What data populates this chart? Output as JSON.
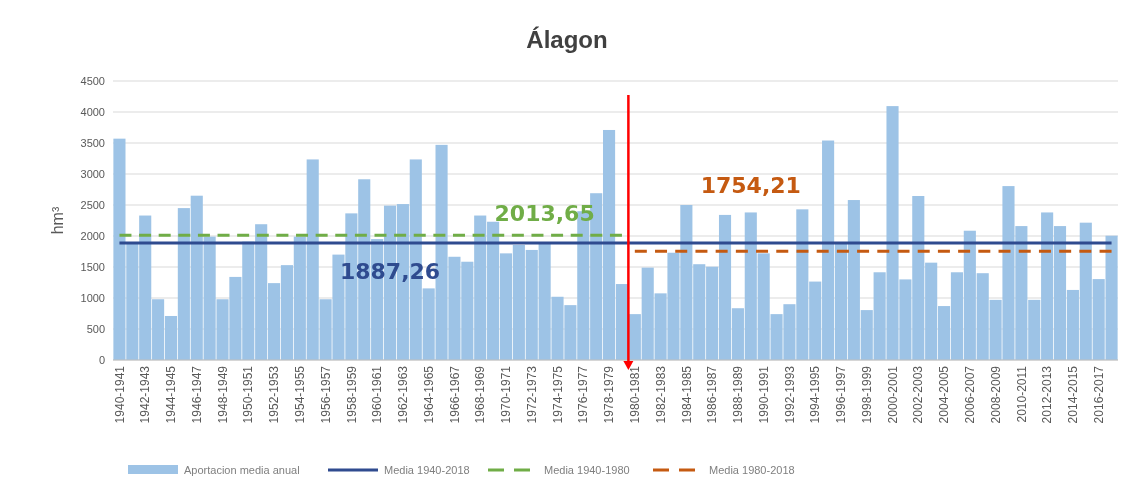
{
  "chart_data": {
    "type": "bar",
    "title": "Álagon",
    "ylabel": "hm³",
    "categories": [
      "1940-1941",
      null,
      "1942-1943",
      null,
      "1944-1945",
      null,
      "1946-1947",
      null,
      "1948-1949",
      null,
      "1950-1951",
      null,
      "1952-1953",
      null,
      "1954-1955",
      null,
      "1956-1957",
      null,
      "1958-1959",
      null,
      "1960-1961",
      null,
      "1962-1963",
      null,
      "1964-1965",
      null,
      "1966-1967",
      null,
      "1968-1969",
      null,
      "1970-1971",
      null,
      "1972-1973",
      null,
      "1974-1975",
      null,
      "1976-1977",
      null,
      "1978-1979",
      null,
      "1980-1981",
      null,
      "1982-1983",
      null,
      "1984-1985",
      null,
      "1986-1987",
      null,
      "1988-1989",
      null,
      "1990-1991",
      null,
      "1992-1993",
      null,
      "1994-1995",
      null,
      "1996-1997",
      null,
      "1998-1999",
      null,
      "2000-2001",
      null,
      "2002-2003",
      null,
      "2004-2005",
      null,
      "2006-2007",
      null,
      "2008-2009",
      null,
      "2010-2011",
      null,
      "2012-2013",
      null,
      "2014-2015",
      null,
      "2016-2017",
      null
    ],
    "series": [
      {
        "name": "Aportacion media anual",
        "color": "#9dc3e6",
        "values": [
          3570,
          1880,
          2330,
          980,
          710,
          2450,
          2650,
          1990,
          980,
          1340,
          1910,
          2190,
          1240,
          1530,
          1990,
          3235,
          980,
          1700,
          2365,
          2915,
          1950,
          2490,
          2515,
          3235,
          1155,
          3470,
          1665,
          1585,
          2330,
          2230,
          1720,
          1855,
          1775,
          1880,
          1020,
          885,
          2400,
          2690,
          3710,
          1225,
          740,
          1490,
          1075,
          1730,
          2500,
          1545,
          1505,
          2340,
          835,
          2380,
          1720,
          740,
          900,
          2430,
          1265,
          3540,
          1880,
          2580,
          805,
          1415,
          4095,
          1300,
          2645,
          1570,
          870,
          1415,
          2085,
          1400,
          970,
          2805,
          2160,
          970,
          2380,
          2160,
          1130,
          2215,
          1305,
          2005
        ]
      },
      {
        "name": "Media 1940-2018",
        "type": "line",
        "color": "#2f4b8f",
        "line_style": "solid",
        "values": [
          1887.26,
          1887.26,
          1887.26,
          1887.26,
          1887.26,
          1887.26,
          1887.26,
          1887.26,
          1887.26,
          1887.26,
          1887.26,
          1887.26,
          1887.26,
          1887.26,
          1887.26,
          1887.26,
          1887.26,
          1887.26,
          1887.26,
          1887.26,
          1887.26,
          1887.26,
          1887.26,
          1887.26,
          1887.26,
          1887.26,
          1887.26,
          1887.26,
          1887.26,
          1887.26,
          1887.26,
          1887.26,
          1887.26,
          1887.26,
          1887.26,
          1887.26,
          1887.26,
          1887.26,
          1887.26,
          1887.26,
          1887.26,
          1887.26,
          1887.26,
          1887.26,
          1887.26,
          1887.26,
          1887.26,
          1887.26,
          1887.26,
          1887.26,
          1887.26,
          1887.26,
          1887.26,
          1887.26,
          1887.26,
          1887.26,
          1887.26,
          1887.26,
          1887.26,
          1887.26,
          1887.26,
          1887.26,
          1887.26,
          1887.26,
          1887.26,
          1887.26,
          1887.26,
          1887.26,
          1887.26,
          1887.26,
          1887.26,
          1887.26,
          1887.26,
          1887.26,
          1887.26,
          1887.26,
          1887.26,
          1887.26
        ],
        "value_labels": [
          null,
          null,
          null,
          null,
          null,
          null,
          null,
          null,
          null,
          null,
          null,
          null,
          null,
          null,
          null,
          null,
          null,
          null,
          null,
          null,
          null,
          "1887,26",
          null,
          null,
          null,
          null,
          null,
          null,
          null,
          null,
          null,
          null,
          null,
          null,
          null,
          null,
          null,
          null,
          null,
          null,
          null,
          null,
          null,
          null,
          null,
          null,
          null,
          null,
          null,
          null,
          null,
          null,
          null,
          null,
          null,
          null,
          null,
          null,
          null,
          null,
          null,
          null,
          null,
          null,
          null,
          null,
          null,
          null,
          null,
          null,
          null,
          null,
          null,
          null,
          null,
          null,
          null,
          null
        ]
      },
      {
        "name": "Media 1940-1980",
        "type": "line",
        "color": "#70ad47",
        "line_style": "dashed",
        "values": [
          2013.65,
          2013.65,
          2013.65,
          2013.65,
          2013.65,
          2013.65,
          2013.65,
          2013.65,
          2013.65,
          2013.65,
          2013.65,
          2013.65,
          2013.65,
          2013.65,
          2013.65,
          2013.65,
          2013.65,
          2013.65,
          2013.65,
          2013.65,
          2013.65,
          2013.65,
          2013.65,
          2013.65,
          2013.65,
          2013.65,
          2013.65,
          2013.65,
          2013.65,
          2013.65,
          2013.65,
          2013.65,
          2013.65,
          2013.65,
          2013.65,
          2013.65,
          2013.65,
          2013.65,
          2013.65,
          2013.65,
          null,
          null,
          null,
          null,
          null,
          null,
          null,
          null,
          null,
          null,
          null,
          null,
          null,
          null,
          null,
          null,
          null,
          null,
          null,
          null,
          null,
          null,
          null,
          null,
          null,
          null,
          null,
          null,
          null,
          null,
          null,
          null,
          null,
          null,
          null,
          null,
          null,
          null
        ],
        "value_labels": [
          null,
          null,
          null,
          null,
          null,
          null,
          null,
          null,
          null,
          null,
          null,
          null,
          null,
          null,
          null,
          null,
          null,
          null,
          null,
          null,
          null,
          null,
          null,
          null,
          null,
          null,
          null,
          null,
          null,
          null,
          null,
          null,
          null,
          "2013,65",
          null,
          null,
          null,
          null,
          null,
          null,
          null,
          null,
          null,
          null,
          null,
          null,
          null,
          null,
          null,
          null,
          null,
          null,
          null,
          null,
          null,
          null,
          null,
          null,
          null,
          null,
          null,
          null,
          null,
          null,
          null,
          null,
          null,
          null,
          null,
          null,
          null,
          null,
          null,
          null,
          null,
          null,
          null,
          null
        ]
      },
      {
        "name": "Media 1980-2018",
        "type": "line",
        "color": "#c55a11",
        "line_style": "dashed",
        "values": [
          null,
          null,
          null,
          null,
          null,
          null,
          null,
          null,
          null,
          null,
          null,
          null,
          null,
          null,
          null,
          null,
          null,
          null,
          null,
          null,
          null,
          null,
          null,
          null,
          null,
          null,
          null,
          null,
          null,
          null,
          null,
          null,
          null,
          null,
          null,
          null,
          null,
          null,
          null,
          null,
          1754.21,
          1754.21,
          1754.21,
          1754.21,
          1754.21,
          1754.21,
          1754.21,
          1754.21,
          1754.21,
          1754.21,
          1754.21,
          1754.21,
          1754.21,
          1754.21,
          1754.21,
          1754.21,
          1754.21,
          1754.21,
          1754.21,
          1754.21,
          1754.21,
          1754.21,
          1754.21,
          1754.21,
          1754.21,
          1754.21,
          1754.21,
          1754.21,
          1754.21,
          1754.21,
          1754.21,
          1754.21,
          1754.21,
          1754.21,
          1754.21,
          1754.21,
          1754.21,
          1754.21
        ],
        "value_labels": [
          null,
          null,
          null,
          null,
          null,
          null,
          null,
          null,
          null,
          null,
          null,
          null,
          null,
          null,
          null,
          null,
          null,
          null,
          null,
          null,
          null,
          null,
          null,
          null,
          null,
          null,
          null,
          null,
          null,
          null,
          null,
          null,
          null,
          null,
          null,
          null,
          null,
          null,
          null,
          null,
          null,
          null,
          null,
          null,
          null,
          null,
          null,
          null,
          null,
          "1754,21",
          null,
          null,
          null,
          null,
          null,
          null,
          null,
          null,
          null,
          null,
          null,
          null,
          null,
          null,
          null,
          null,
          null,
          null,
          null,
          null,
          null,
          null,
          null,
          null,
          null,
          null,
          null,
          null
        ]
      }
    ],
    "ref_lines": [
      {
        "axis": "x",
        "value": "1980-1981",
        "color": "#ff0000"
      }
    ],
    "ylim": [
      0,
      4500
    ],
    "yticks": [
      0,
      500,
      1000,
      1500,
      2000,
      2500,
      3000,
      3500,
      4000,
      4500
    ],
    "grid": "y",
    "legend": "bottom"
  }
}
